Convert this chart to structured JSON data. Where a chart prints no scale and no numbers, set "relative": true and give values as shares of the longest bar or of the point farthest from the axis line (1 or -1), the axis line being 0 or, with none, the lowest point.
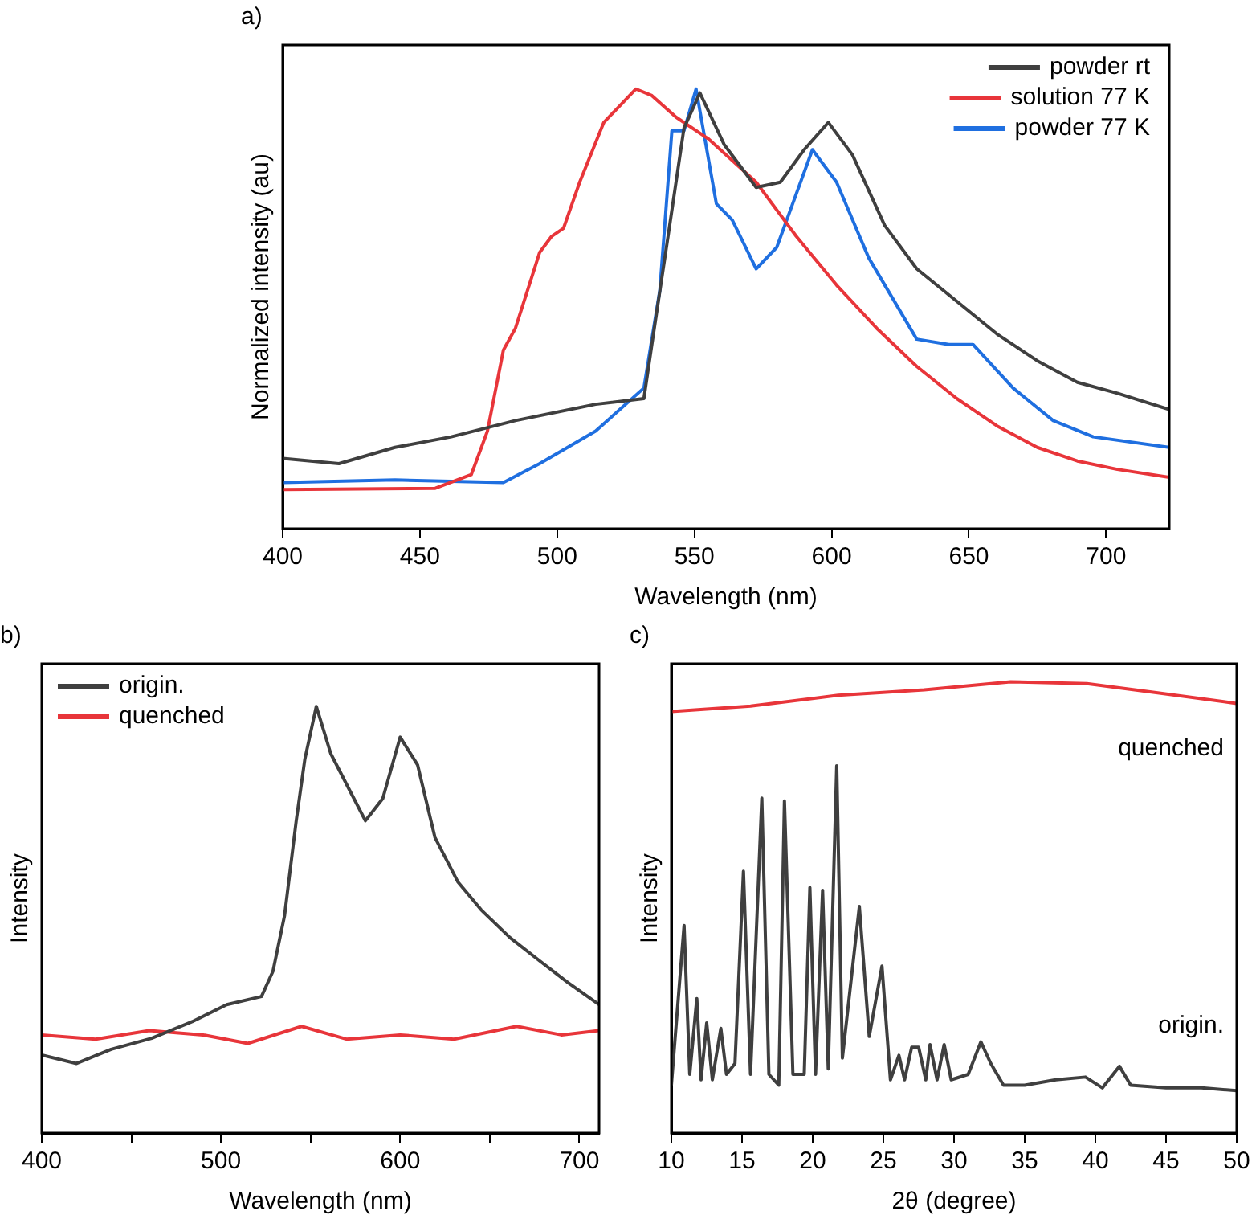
{
  "chart_data": [
    {
      "type": "line",
      "title": "a)",
      "xlabel": "Wavelength (nm)",
      "ylabel": "Normalized intensity (au)",
      "relative": true,
      "xlim": [
        400,
        723
      ],
      "xticks": [
        400,
        450,
        500,
        550,
        600,
        650,
        700
      ],
      "legend": "top right",
      "series": [
        {
          "name": "powder rt",
          "color": "#3f3f3f",
          "x": [
            400,
            420.5,
            440.9,
            461.4,
            484.8,
            514,
            531.6,
            534.5,
            540.4,
            546.2,
            552,
            560.8,
            572.5,
            581.3,
            590,
            598.8,
            607.6,
            619.3,
            631,
            645.6,
            660.2,
            674.9,
            689.5,
            704.1,
            723
          ],
          "values": [
            0.16,
            0.148,
            0.185,
            0.209,
            0.246,
            0.283,
            0.296,
            0.419,
            0.665,
            0.911,
            0.991,
            0.874,
            0.776,
            0.788,
            0.862,
            0.924,
            0.85,
            0.69,
            0.591,
            0.517,
            0.443,
            0.382,
            0.333,
            0.308,
            0.271
          ]
        },
        {
          "name": "solution 77 K",
          "color": "#e8353a",
          "x": [
            400,
            455.6,
            468.7,
            474.6,
            480.4,
            484.8,
            493.6,
            498,
            502.3,
            508.2,
            517,
            528.7,
            534.5,
            543.3,
            555,
            572.5,
            587.1,
            601.8,
            616.4,
            631,
            645.6,
            660.2,
            674.9,
            689.5,
            704.1,
            723
          ],
          "values": [
            0.089,
            0.092,
            0.123,
            0.222,
            0.406,
            0.456,
            0.628,
            0.665,
            0.683,
            0.788,
            0.924,
            1,
            0.985,
            0.936,
            0.887,
            0.788,
            0.665,
            0.554,
            0.456,
            0.369,
            0.296,
            0.234,
            0.185,
            0.154,
            0.135,
            0.117
          ]
        },
        {
          "name": "powder 77 K",
          "color": "#1f6fe0",
          "x": [
            400,
            440.9,
            480.4,
            493.6,
            514,
            531.6,
            537.4,
            541.8,
            546.2,
            550.6,
            558,
            563.8,
            572.5,
            580,
            593,
            601.8,
            613.5,
            631,
            642.7,
            651.5,
            666.1,
            680.7,
            695.3,
            723
          ],
          "values": [
            0.105,
            0.111,
            0.105,
            0.148,
            0.222,
            0.32,
            0.542,
            0.905,
            0.905,
            1,
            0.739,
            0.702,
            0.591,
            0.64,
            0.862,
            0.788,
            0.616,
            0.431,
            0.419,
            0.419,
            0.32,
            0.246,
            0.209,
            0.185
          ]
        }
      ]
    },
    {
      "type": "line",
      "title": "b)",
      "xlabel": "Wavelength (nm)",
      "ylabel": "Intensity",
      "relative": true,
      "xlim": [
        400,
        711
      ],
      "xticks": [
        400,
        {
          "value": 450,
          "label": null
        },
        500,
        {
          "value": 550,
          "label": null
        },
        600,
        {
          "value": 650,
          "label": null
        },
        700
      ],
      "legend": "top left",
      "series": [
        {
          "name": "origin.",
          "color": "#3f3f3f",
          "x": [
            400,
            419.4,
            438.7,
            461.3,
            483.9,
            503.2,
            522.6,
            529,
            535.5,
            542,
            546.8,
            553.2,
            561.3,
            571,
            580.6,
            590.3,
            600,
            609.7,
            619.4,
            632.3,
            645.2,
            661.3,
            677.4,
            693.5,
            711
          ],
          "values": [
            0.183,
            0.163,
            0.196,
            0.222,
            0.261,
            0.301,
            0.32,
            0.379,
            0.51,
            0.732,
            0.876,
            1,
            0.889,
            0.81,
            0.732,
            0.784,
            0.928,
            0.863,
            0.693,
            0.588,
            0.523,
            0.458,
            0.405,
            0.353,
            0.301
          ]
        },
        {
          "name": "quenched",
          "color": "#e8353a",
          "x": [
            400,
            430,
            460,
            490,
            515,
            545,
            570,
            600,
            630,
            665,
            690,
            711
          ],
          "values": [
            0.23,
            0.22,
            0.24,
            0.23,
            0.21,
            0.25,
            0.22,
            0.23,
            0.22,
            0.25,
            0.23,
            0.24
          ]
        }
      ]
    },
    {
      "type": "line",
      "title": "c)",
      "xlabel": "2θ (degree)",
      "ylabel": "Intensity",
      "relative": true,
      "xlim": [
        10,
        50
      ],
      "xticks": [
        10,
        15,
        20,
        25,
        30,
        35,
        40,
        45,
        50
      ],
      "series": [
        {
          "name": "quenched",
          "color": "#e8353a",
          "x": [
            10,
            15.6,
            21.8,
            27.9,
            34,
            39.4,
            44.3,
            50
          ],
          "values": [
            0.934,
            0.946,
            0.97,
            0.982,
            1,
            0.996,
            0.976,
            0.952
          ]
        },
        {
          "name": "origin.",
          "color": "#3f3f3f",
          "x": [
            10,
            10.9,
            11.3,
            11.8,
            12.1,
            12.5,
            12.9,
            13.5,
            13.9,
            14.5,
            15.1,
            15.6,
            16.4,
            16.9,
            17.6,
            18.0,
            18.6,
            19.4,
            19.8,
            20.2,
            20.7,
            21.1,
            21.7,
            22.1,
            23.3,
            24.0,
            24.9,
            25.5,
            26.1,
            26.5,
            27.0,
            27.5,
            28.0,
            28.3,
            28.8,
            29.3,
            29.8,
            31.0,
            31.9,
            32.6,
            33.5,
            35,
            37.2,
            39.3,
            40.5,
            41.7,
            42.5,
            45,
            47.5,
            50
          ],
          "values": [
            0.106,
            0.46,
            0.13,
            0.298,
            0.118,
            0.244,
            0.118,
            0.232,
            0.13,
            0.154,
            0.58,
            0.13,
            0.742,
            0.13,
            0.106,
            0.736,
            0.13,
            0.13,
            0.544,
            0.13,
            0.538,
            0.142,
            0.814,
            0.166,
            0.502,
            0.214,
            0.37,
            0.118,
            0.172,
            0.118,
            0.19,
            0.19,
            0.118,
            0.196,
            0.118,
            0.196,
            0.118,
            0.13,
            0.202,
            0.154,
            0.106,
            0.106,
            0.118,
            0.124,
            0.1,
            0.148,
            0.106,
            0.1,
            0.1,
            0.094
          ]
        }
      ]
    }
  ]
}
